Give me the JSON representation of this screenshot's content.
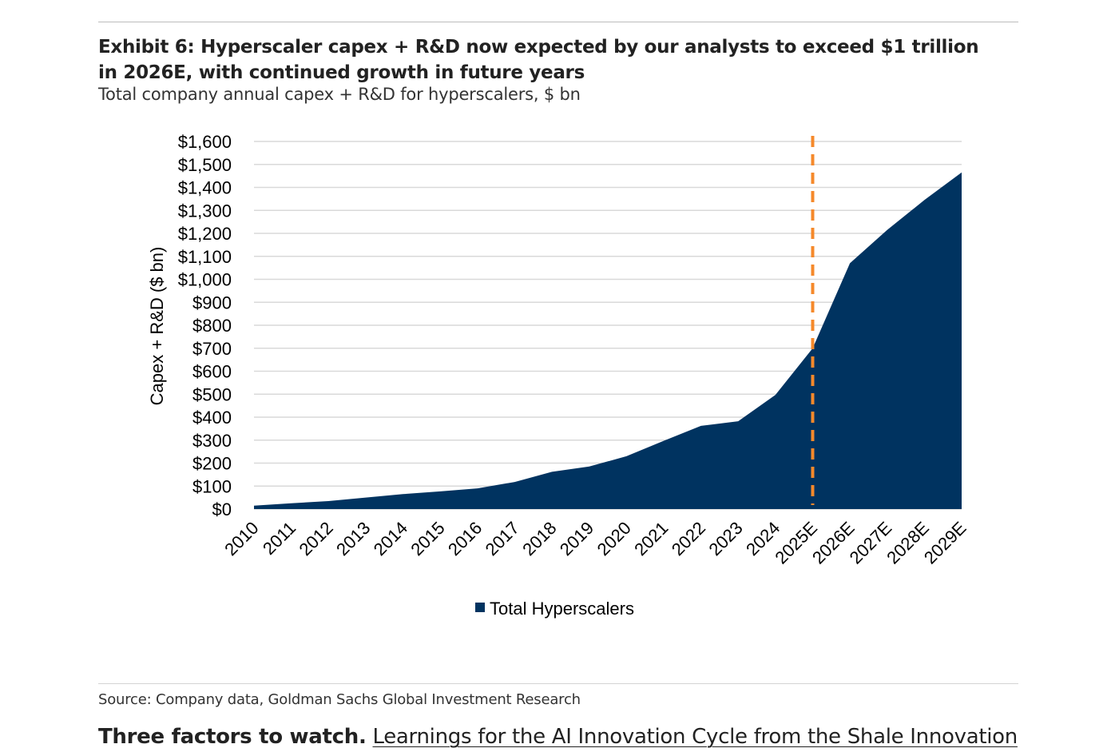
{
  "exhibit": {
    "title": "Exhibit 6: Hyperscaler capex + R&D now expected by our analysts to exceed $1 trillion in 2026E, with continued growth in future years",
    "subtitle": "Total company annual capex + R&D for hyperscalers, $ bn"
  },
  "source": "Source: Company data, Goldman Sachs Global Investment Research",
  "footer": {
    "lead": "Three factors to watch.",
    "link": "Learnings for the AI Innovation Cycle from the Shale Innovation"
  },
  "chart_data": {
    "type": "area",
    "ylabel": "Capex + R&D ($ bn)",
    "ylim": [
      0,
      1600
    ],
    "ytick_step": 100,
    "ytick_labels": [
      "$0",
      "$100",
      "$200",
      "$300",
      "$400",
      "$500",
      "$600",
      "$700",
      "$800",
      "$900",
      "$1,000",
      "$1,100",
      "$1,200",
      "$1,300",
      "$1,400",
      "$1,500",
      "$1,600"
    ],
    "categories": [
      "2010",
      "2011",
      "2012",
      "2013",
      "2014",
      "2015",
      "2016",
      "2017",
      "2018",
      "2019",
      "2020",
      "2021",
      "2022",
      "2023",
      "2024",
      "2025E",
      "2026E",
      "2027E",
      "2028E",
      "2029E"
    ],
    "series": [
      {
        "name": "Total Hyperscalers",
        "color": "#003360",
        "values": [
          15,
          25,
          35,
          50,
          65,
          77,
          90,
          118,
          162,
          185,
          230,
          297,
          362,
          382,
          497,
          700,
          1070,
          1215,
          1345,
          1465
        ]
      }
    ],
    "marker_line": {
      "category": "2025E",
      "color": "#f5892b",
      "style": "dashed"
    },
    "grid": true,
    "gridline_color": "#d9d9d9",
    "legend_position": "bottom-center"
  }
}
